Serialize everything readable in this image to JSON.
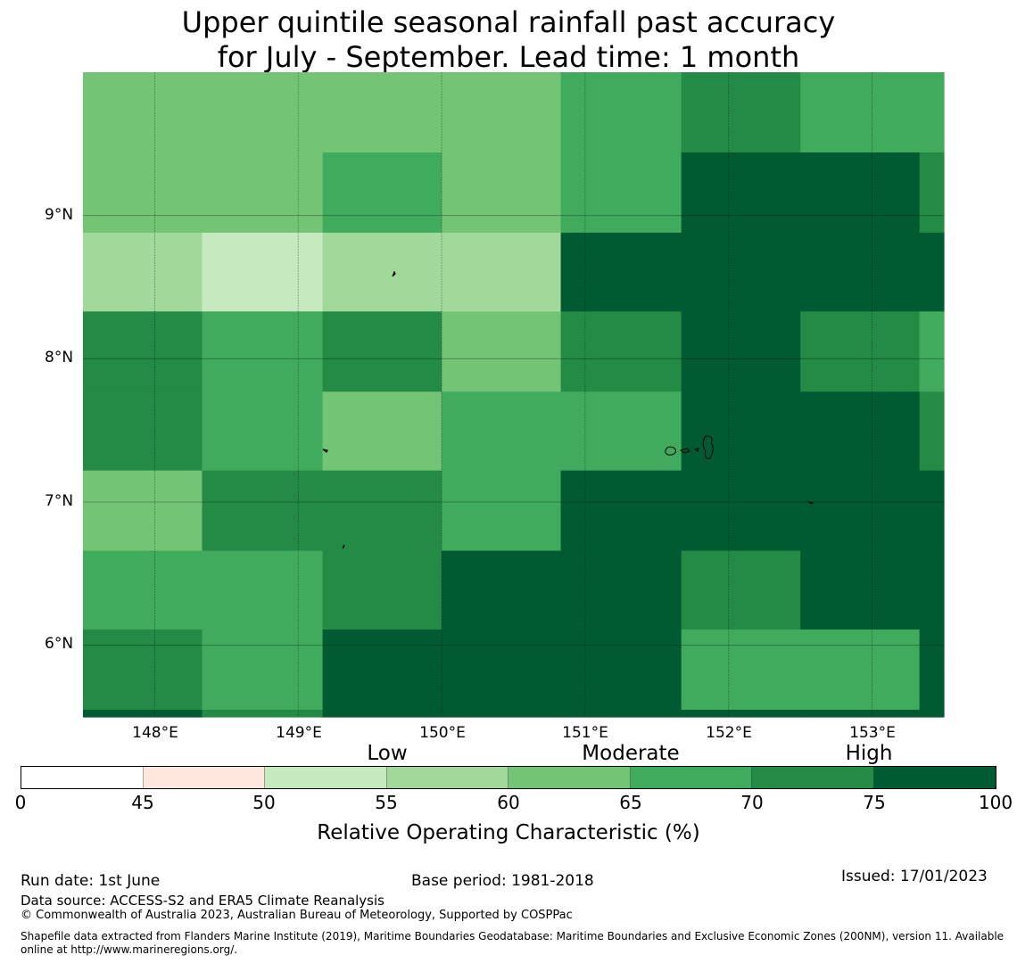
{
  "title": {
    "line1": "Upper quintile seasonal rainfall past accuracy",
    "line2": "for July - September. Lead time: 1 month"
  },
  "map": {
    "lon_labels": [
      "148°E",
      "149°E",
      "150°E",
      "151°E",
      "152°E",
      "153°E"
    ],
    "lon_values": [
      148,
      149,
      150,
      151,
      152,
      153
    ],
    "lat_labels": [
      "9°N",
      "8°N",
      "7°N",
      "6°N"
    ],
    "lat_values": [
      9,
      8,
      7,
      6
    ],
    "lon_range": [
      147.5,
      153.5
    ],
    "lat_range": [
      5.5,
      10.0
    ],
    "grid": true,
    "grid_lon_edges": [
      147.5,
      148.33,
      149.17,
      150.0,
      150.83,
      151.67,
      152.5,
      153.33,
      153.5
    ],
    "grid_lat_edges": [
      10.0,
      9.44,
      8.88,
      8.33,
      7.77,
      7.22,
      6.66,
      6.11,
      5.55,
      5.5
    ],
    "cell_categories_note_free": true,
    "cell_values": [
      [
        62,
        62,
        62,
        62,
        67,
        72,
        67,
        67
      ],
      [
        62,
        62,
        67,
        62,
        67,
        80,
        80,
        72
      ],
      [
        57,
        52,
        57,
        57,
        80,
        80,
        80,
        80
      ],
      [
        72,
        67,
        72,
        62,
        72,
        80,
        72,
        67
      ],
      [
        72,
        67,
        62,
        67,
        67,
        80,
        80,
        72
      ],
      [
        62,
        72,
        72,
        67,
        80,
        80,
        80,
        80
      ],
      [
        67,
        67,
        72,
        80,
        80,
        72,
        80,
        80
      ],
      [
        72,
        67,
        80,
        80,
        80,
        67,
        67,
        80
      ],
      [
        80,
        72,
        80,
        80,
        80,
        80,
        80,
        80
      ]
    ]
  },
  "colorbar": {
    "bounds": [
      0,
      45,
      50,
      55,
      60,
      65,
      70,
      75,
      100
    ],
    "tick_labels": [
      "0",
      "45",
      "50",
      "55",
      "60",
      "65",
      "70",
      "75",
      "100"
    ],
    "colors": [
      "#ffffff",
      "#fee8de",
      "#c7e9c0",
      "#a1d99b",
      "#74c476",
      "#41ab5d",
      "#238b45",
      "#005a32"
    ],
    "category_labels": [
      "Low",
      "Moderate",
      "High"
    ],
    "label": "Relative Operating Characteristic (%)"
  },
  "footer": {
    "run_date": "Run date: 1st June",
    "base_period": "Base period: 1981-2018",
    "issued": "Issued: 17/01/2023",
    "data_source": "Data source: ACCESS-S2 and ERA5 Climate Reanalysis",
    "copyright": "© Commonwealth of Australia 2023, Australian Bureau of Meteorology, Supported by COSPPac",
    "shapefile": "Shapefile data extracted from Flanders Marine Institute (2019), Maritime Boundaries Geodatabase: Maritime Boundaries and Exclusive Economic Zones (200NM), version 11. Available online at http://www.marineregions.org/."
  }
}
